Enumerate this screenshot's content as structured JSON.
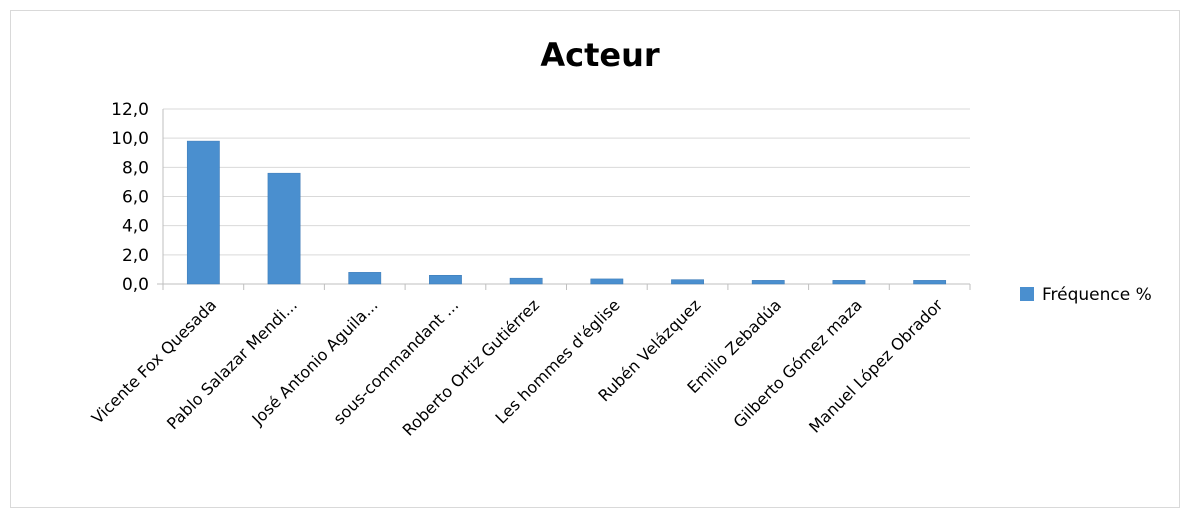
{
  "chart_data": {
    "type": "bar",
    "title": "Acteur",
    "categories": [
      "Vicente Fox Quesada",
      "Pablo Salazar Mendi...",
      "José Antonio Aguila...",
      "sous-commandant ...",
      "Roberto Ortiz Gutiérrez",
      "Les hommes d'église",
      "Rubén Velázquez",
      "Emilio Zebadúa",
      "Gilberto Gómez maza",
      "Manuel López Obrador"
    ],
    "series": [
      {
        "name": "Fréquence %",
        "values": [
          9.8,
          7.6,
          0.8,
          0.6,
          0.4,
          0.35,
          0.3,
          0.25,
          0.25,
          0.25
        ]
      }
    ],
    "ylim": [
      0,
      12
    ],
    "yticks": [
      "0,0",
      "2,0",
      "4,0",
      "6,0",
      "8,0",
      "10,0",
      "12,0"
    ],
    "grid": true,
    "legend_position": "right",
    "colors": {
      "bar": "#4a8fcf",
      "bar_stroke": "#3a78b5",
      "grid": "#d9d9d9",
      "axis": "#bfbfbf"
    }
  }
}
